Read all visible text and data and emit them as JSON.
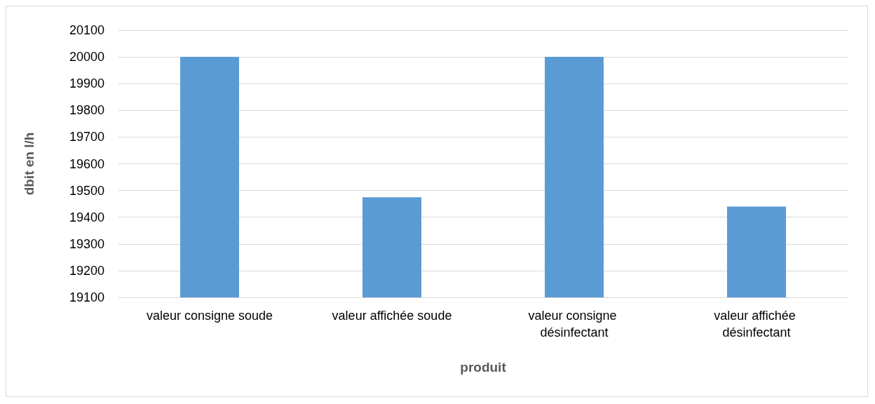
{
  "chart_data": {
    "type": "bar",
    "xlabel": "produit",
    "ylabel": "dbit en l/h",
    "categories": [
      "valeur consigne soude",
      "valeur affichée soude",
      "valeur consigne désinfectant",
      "valeur affichée désinfectant"
    ],
    "values": [
      20000,
      19475,
      20000,
      19440
    ],
    "color": "#5b9bd5",
    "ylim": [
      19100,
      20100
    ],
    "yticks": [
      19100,
      19200,
      19300,
      19400,
      19500,
      19600,
      19700,
      19800,
      19900,
      20000,
      20100
    ],
    "grid": "y"
  }
}
